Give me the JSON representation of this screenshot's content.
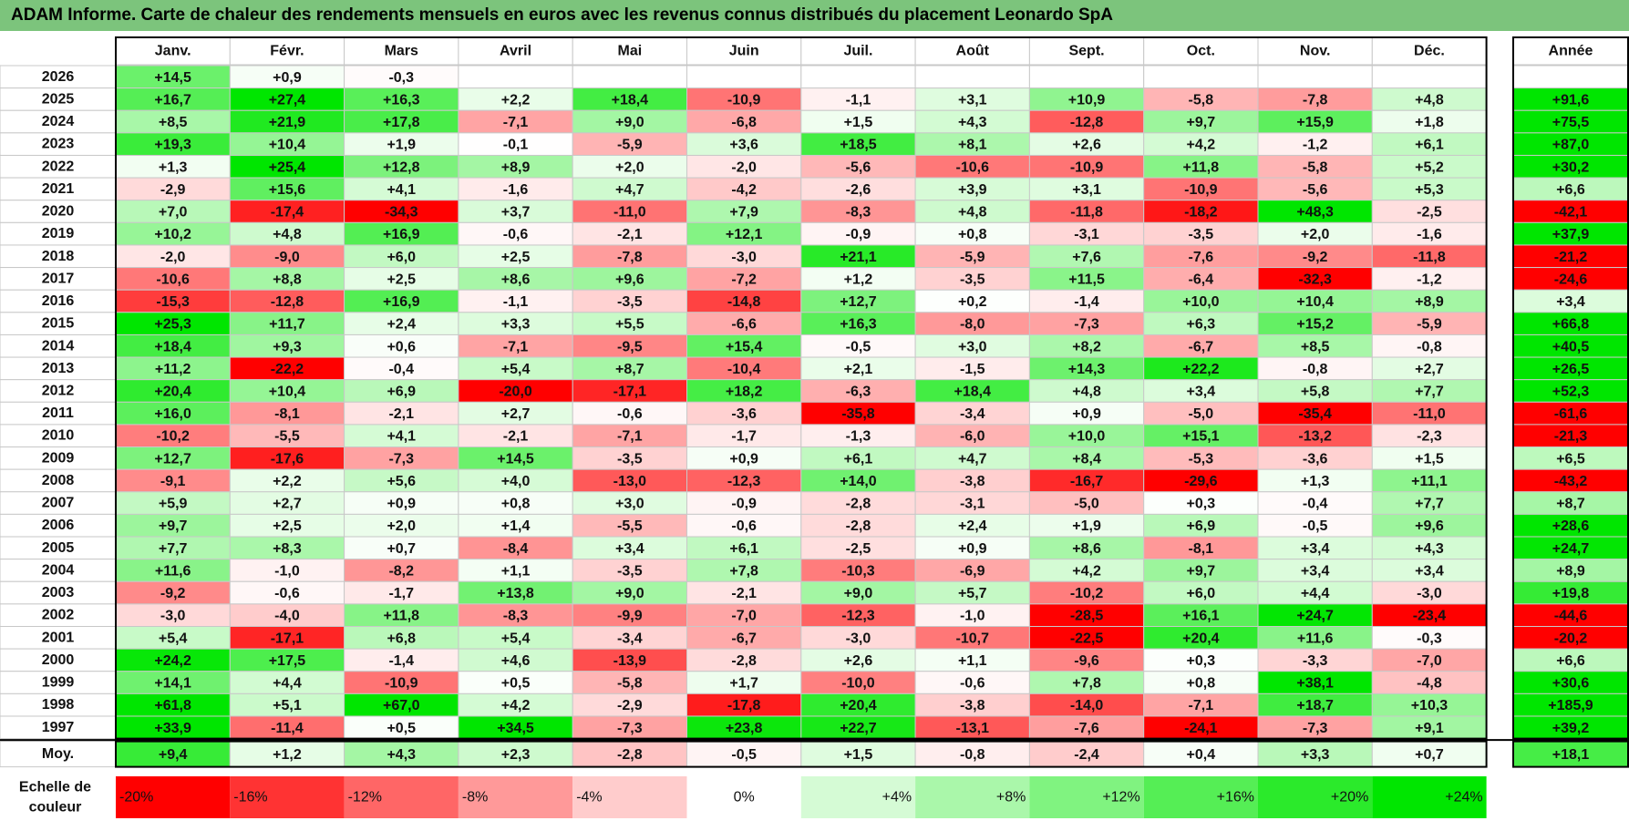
{
  "title": "ADAM Informe. Carte de chaleur des rendements mensuels en euros avec les revenus connus distribués du placement Leonardo SpA",
  "chart_data": {
    "type": "heatmap",
    "months": [
      "Janv.",
      "Févr.",
      "Mars",
      "Avril",
      "Mai",
      "Juin",
      "Juil.",
      "Août",
      "Sept.",
      "Oct.",
      "Nov.",
      "Déc."
    ],
    "year_header": "Année",
    "avg_label": "Moy.",
    "rows": [
      {
        "year": "2026",
        "values": [
          "+14,5",
          "+0,9",
          "-0,3",
          "",
          "",
          "",
          "",
          "",
          "",
          "",
          "",
          ""
        ],
        "annual": ""
      },
      {
        "year": "2025",
        "values": [
          "+16,7",
          "+27,4",
          "+16,3",
          "+2,2",
          "+18,4",
          "-10,9",
          "-1,1",
          "+3,1",
          "+10,9",
          "-5,8",
          "-7,8",
          "+4,8"
        ],
        "annual": "+91,6"
      },
      {
        "year": "2024",
        "values": [
          "+8,5",
          "+21,9",
          "+17,8",
          "-7,1",
          "+9,0",
          "-6,8",
          "+1,5",
          "+4,3",
          "-12,8",
          "+9,7",
          "+15,9",
          "+1,8"
        ],
        "annual": "+75,5"
      },
      {
        "year": "2023",
        "values": [
          "+19,3",
          "+10,4",
          "+1,9",
          "-0,1",
          "-5,9",
          "+3,6",
          "+18,5",
          "+8,1",
          "+2,6",
          "+4,2",
          "-1,2",
          "+6,1"
        ],
        "annual": "+87,0"
      },
      {
        "year": "2022",
        "values": [
          "+1,3",
          "+25,4",
          "+12,8",
          "+8,9",
          "+2,0",
          "-2,0",
          "-5,6",
          "-10,6",
          "-10,9",
          "+11,8",
          "-5,8",
          "+5,2"
        ],
        "annual": "+30,2"
      },
      {
        "year": "2021",
        "values": [
          "-2,9",
          "+15,6",
          "+4,1",
          "-1,6",
          "+4,7",
          "-4,2",
          "-2,6",
          "+3,9",
          "+3,1",
          "-10,9",
          "-5,6",
          "+5,3"
        ],
        "annual": "+6,6"
      },
      {
        "year": "2020",
        "values": [
          "+7,0",
          "-17,4",
          "-34,3",
          "+3,7",
          "-11,0",
          "+7,9",
          "-8,3",
          "+4,8",
          "-11,8",
          "-18,2",
          "+48,3",
          "-2,5"
        ],
        "annual": "-42,1"
      },
      {
        "year": "2019",
        "values": [
          "+10,2",
          "+4,8",
          "+16,9",
          "-0,6",
          "-2,1",
          "+12,1",
          "-0,9",
          "+0,8",
          "-3,1",
          "-3,5",
          "+2,0",
          "-1,6"
        ],
        "annual": "+37,9"
      },
      {
        "year": "2018",
        "values": [
          "-2,0",
          "-9,0",
          "+6,0",
          "+2,5",
          "-7,8",
          "-3,0",
          "+21,1",
          "-5,9",
          "+7,6",
          "-7,6",
          "-9,2",
          "-11,8"
        ],
        "annual": "-21,2"
      },
      {
        "year": "2017",
        "values": [
          "-10,6",
          "+8,8",
          "+2,5",
          "+8,6",
          "+9,6",
          "-7,2",
          "+1,2",
          "-3,5",
          "+11,5",
          "-6,4",
          "-32,3",
          "-1,2"
        ],
        "annual": "-24,6"
      },
      {
        "year": "2016",
        "values": [
          "-15,3",
          "-12,8",
          "+16,9",
          "-1,1",
          "-3,5",
          "-14,8",
          "+12,7",
          "+0,2",
          "-1,4",
          "+10,0",
          "+10,4",
          "+8,9"
        ],
        "annual": "+3,4"
      },
      {
        "year": "2015",
        "values": [
          "+25,3",
          "+11,7",
          "+2,4",
          "+3,3",
          "+5,5",
          "-6,6",
          "+16,3",
          "-8,0",
          "-7,3",
          "+6,3",
          "+15,2",
          "-5,9"
        ],
        "annual": "+66,8"
      },
      {
        "year": "2014",
        "values": [
          "+18,4",
          "+9,3",
          "+0,6",
          "-7,1",
          "-9,5",
          "+15,4",
          "-0,5",
          "+3,0",
          "+8,2",
          "-6,7",
          "+8,5",
          "-0,8"
        ],
        "annual": "+40,5"
      },
      {
        "year": "2013",
        "values": [
          "+11,2",
          "-22,2",
          "-0,4",
          "+5,4",
          "+8,7",
          "-10,4",
          "+2,1",
          "-1,5",
          "+14,3",
          "+22,2",
          "-0,8",
          "+2,7"
        ],
        "annual": "+26,5"
      },
      {
        "year": "2012",
        "values": [
          "+20,4",
          "+10,4",
          "+6,9",
          "-20,0",
          "-17,1",
          "+18,2",
          "-6,3",
          "+18,4",
          "+4,8",
          "+3,4",
          "+5,8",
          "+7,7"
        ],
        "annual": "+52,3"
      },
      {
        "year": "2011",
        "values": [
          "+16,0",
          "-8,1",
          "-2,1",
          "+2,7",
          "-0,6",
          "-3,6",
          "-35,8",
          "-3,4",
          "+0,9",
          "-5,0",
          "-35,4",
          "-11,0"
        ],
        "annual": "-61,6"
      },
      {
        "year": "2010",
        "values": [
          "-10,2",
          "-5,5",
          "+4,1",
          "-2,1",
          "-7,1",
          "-1,7",
          "-1,3",
          "-6,0",
          "+10,0",
          "+15,1",
          "-13,2",
          "-2,3"
        ],
        "annual": "-21,3"
      },
      {
        "year": "2009",
        "values": [
          "+12,7",
          "-17,6",
          "-7,3",
          "+14,5",
          "-3,5",
          "+0,9",
          "+6,1",
          "+4,7",
          "+8,4",
          "-5,3",
          "-3,6",
          "+1,5"
        ],
        "annual": "+6,5"
      },
      {
        "year": "2008",
        "values": [
          "-9,1",
          "+2,2",
          "+5,6",
          "+4,0",
          "-13,0",
          "-12,3",
          "+14,0",
          "-3,8",
          "-16,7",
          "-29,6",
          "+1,3",
          "+11,1"
        ],
        "annual": "-43,2"
      },
      {
        "year": "2007",
        "values": [
          "+5,9",
          "+2,7",
          "+0,9",
          "+0,8",
          "+3,0",
          "-0,9",
          "-2,8",
          "-3,1",
          "-5,0",
          "+0,3",
          "-0,4",
          "+7,7"
        ],
        "annual": "+8,7"
      },
      {
        "year": "2006",
        "values": [
          "+9,7",
          "+2,5",
          "+2,0",
          "+1,4",
          "-5,5",
          "-0,6",
          "-2,8",
          "+2,4",
          "+1,9",
          "+6,9",
          "-0,5",
          "+9,6"
        ],
        "annual": "+28,6"
      },
      {
        "year": "2005",
        "values": [
          "+7,7",
          "+8,3",
          "+0,7",
          "-8,4",
          "+3,4",
          "+6,1",
          "-2,5",
          "+0,9",
          "+8,6",
          "-8,1",
          "+3,4",
          "+4,3"
        ],
        "annual": "+24,7"
      },
      {
        "year": "2004",
        "values": [
          "+11,6",
          "-1,0",
          "-8,2",
          "+1,1",
          "-3,5",
          "+7,8",
          "-10,3",
          "-6,9",
          "+4,2",
          "+9,7",
          "+3,4",
          "+3,4"
        ],
        "annual": "+8,9"
      },
      {
        "year": "2003",
        "values": [
          "-9,2",
          "-0,6",
          "-1,7",
          "+13,8",
          "+9,0",
          "-2,1",
          "+9,0",
          "+5,7",
          "-10,2",
          "+6,0",
          "+4,4",
          "-3,0"
        ],
        "annual": "+19,8"
      },
      {
        "year": "2002",
        "values": [
          "-3,0",
          "-4,0",
          "+11,8",
          "-8,3",
          "-9,9",
          "-7,0",
          "-12,3",
          "-1,0",
          "-28,5",
          "+16,1",
          "+24,7",
          "-23,4"
        ],
        "annual": "-44,6"
      },
      {
        "year": "2001",
        "values": [
          "+5,4",
          "-17,1",
          "+6,8",
          "+5,4",
          "-3,4",
          "-6,7",
          "-3,0",
          "-10,7",
          "-22,5",
          "+20,4",
          "+11,6",
          "-0,3"
        ],
        "annual": "-20,2"
      },
      {
        "year": "2000",
        "values": [
          "+24,2",
          "+17,5",
          "-1,4",
          "+4,6",
          "-13,9",
          "-2,8",
          "+2,6",
          "+1,1",
          "-9,6",
          "+0,3",
          "-3,3",
          "-7,0"
        ],
        "annual": "+6,6"
      },
      {
        "year": "1999",
        "values": [
          "+14,1",
          "+4,4",
          "-10,9",
          "+0,5",
          "-5,8",
          "+1,7",
          "-10,0",
          "-0,6",
          "+7,8",
          "+0,8",
          "+38,1",
          "-4,8"
        ],
        "annual": "+30,6"
      },
      {
        "year": "1998",
        "values": [
          "+61,8",
          "+5,1",
          "+67,0",
          "+4,2",
          "-2,9",
          "-17,8",
          "+20,4",
          "-3,8",
          "-14,0",
          "-7,1",
          "+18,7",
          "+10,3"
        ],
        "annual": "+185,9"
      },
      {
        "year": "1997",
        "values": [
          "+33,9",
          "-11,4",
          "+0,5",
          "+34,5",
          "-7,3",
          "+23,8",
          "+22,7",
          "-13,1",
          "-7,6",
          "-24,1",
          "-7,3",
          "+9,1"
        ],
        "annual": "+39,2"
      }
    ],
    "averages": {
      "values": [
        "+9,4",
        "+1,2",
        "+4,3",
        "+2,3",
        "-2,8",
        "-0,5",
        "+1,5",
        "-0,8",
        "-2,4",
        "+0,4",
        "+3,3",
        "+0,7"
      ],
      "annual": "+18,1"
    },
    "scale": {
      "label_line1": "Echelle de",
      "label_line2": "couleur",
      "stops": [
        "-20%",
        "-16%",
        "-12%",
        "-8%",
        "-4%",
        "0%",
        "+4%",
        "+8%",
        "+12%",
        "+16%",
        "+20%",
        "+24%"
      ],
      "stop_values": [
        -20,
        -16,
        -12,
        -8,
        -4,
        0,
        4,
        8,
        12,
        16,
        20,
        24
      ]
    },
    "colors": {
      "title_bg": "#7cc47c",
      "neg_max": "#ff0000",
      "pos_max": "#00e600",
      "neutral": "#ffffff",
      "grid": "#c8c8c8",
      "border": "#000000"
    }
  }
}
